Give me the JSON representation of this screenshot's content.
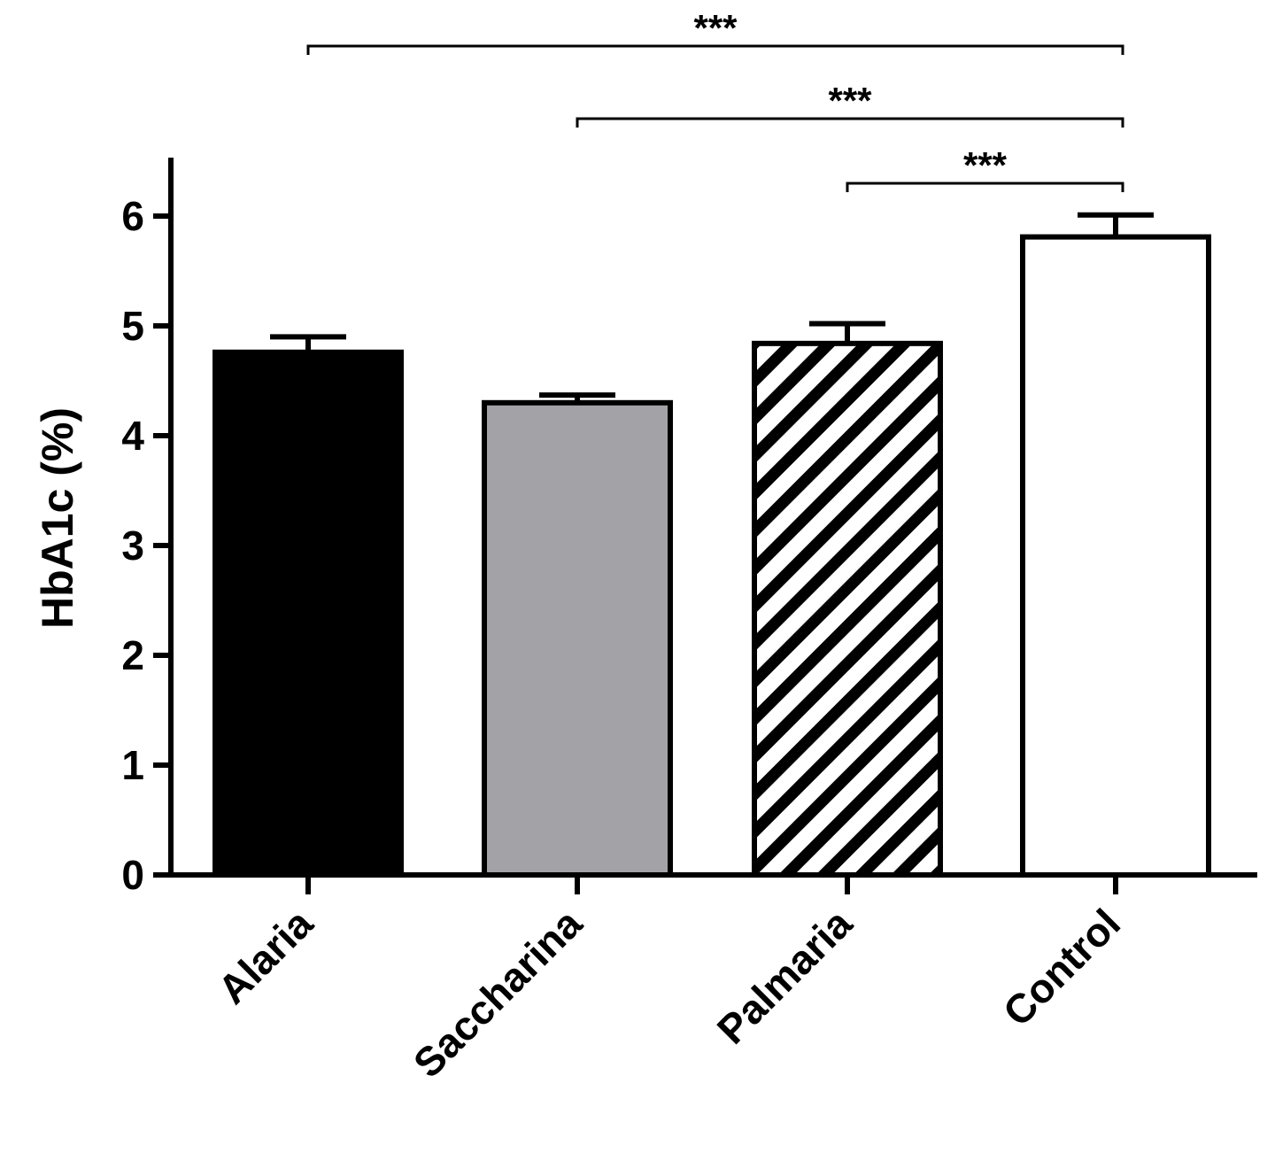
{
  "chart_data": {
    "type": "bar",
    "categories": [
      "Alaria",
      "Saccharina",
      "Palmaria",
      "Control"
    ],
    "values": [
      4.76,
      4.3,
      4.84,
      5.81
    ],
    "errors": [
      0.14,
      0.07,
      0.18,
      0.2
    ],
    "fills": [
      "#000000",
      "#a3a2a6",
      "hatch",
      "#ffffff"
    ],
    "ylabel": "HbA1c (%)",
    "ylim": [
      0,
      6.5
    ],
    "yticks": [
      "0",
      "1",
      "2",
      "3",
      "4",
      "5",
      "6"
    ],
    "significance": [
      {
        "from": "Alaria",
        "to": "Control",
        "label": "***"
      },
      {
        "from": "Saccharina",
        "to": "Control",
        "label": "***"
      },
      {
        "from": "Palmaria",
        "to": "Control",
        "label": "***"
      }
    ],
    "grid": false,
    "legend": "none"
  }
}
